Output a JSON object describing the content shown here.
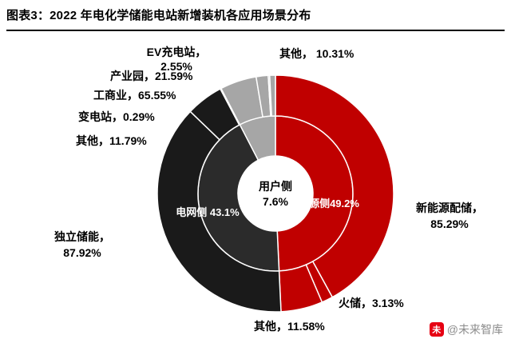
{
  "title": "图表3：2022 年电化学储能电站新增装机各应用场景分布",
  "watermark": {
    "logo_glyph": "未",
    "text": "@未来智库"
  },
  "chart_data": {
    "type": "sunburst",
    "title": "2022 年电化学储能电站新增装机各应用场景分布",
    "unit": "%",
    "legend_position": "none",
    "inner_ring": [
      {
        "name": "电源侧",
        "value": 49.2,
        "color": "#C00000"
      },
      {
        "name": "电网侧",
        "value": 43.1,
        "color": "#2B2B2B"
      },
      {
        "name": "用户侧",
        "value": 7.6,
        "color": "#A6A6A6"
      }
    ],
    "outer_ring": [
      {
        "parent": "电源侧",
        "name": "新能源配储",
        "value": 85.29,
        "color": "#C00000"
      },
      {
        "parent": "电源侧",
        "name": "火储",
        "value": 3.13,
        "color": "#C00000"
      },
      {
        "parent": "电源侧",
        "name": "其他",
        "value": 11.58,
        "color": "#C00000"
      },
      {
        "parent": "电网侧",
        "name": "独立储能",
        "value": 87.92,
        "color": "#1A1A1A"
      },
      {
        "parent": "电网侧",
        "name": "其他",
        "value": 11.79,
        "color": "#1A1A1A"
      },
      {
        "parent": "电网侧",
        "name": "变电站",
        "value": 0.29,
        "color": "#1A1A1A"
      },
      {
        "parent": "用户侧",
        "name": "工商业",
        "value": 65.55,
        "color": "#A6A6A6"
      },
      {
        "parent": "用户侧",
        "name": "产业园",
        "value": 21.59,
        "color": "#A6A6A6"
      },
      {
        "parent": "用户侧",
        "name": "EV充电站",
        "value": 2.55,
        "color": "#A6A6A6"
      },
      {
        "parent": "用户侧",
        "name": "其他",
        "value": 10.31,
        "color": "#A6A6A6"
      }
    ],
    "labels": {
      "top_other": "其他， 10.31%",
      "ev_station": "EV充电站，\n2.55%",
      "industry_park": "产业园，21.59%",
      "commerce": "工商业，65.55%",
      "substation": "变电站，0.29%",
      "grid_other": "其他，11.79%",
      "independent_storage": "独立储能，\n87.92%",
      "bottom_other": "其他，11.58%",
      "thermal_storage": "火储，3.13%",
      "new_energy_storage": "新能源配储，\n85.29%",
      "inner_grid_side": "电网侧 43.1%",
      "inner_source_side": "电源侧49.2%",
      "center_top": "用户侧",
      "center_value": "7.6%"
    }
  }
}
